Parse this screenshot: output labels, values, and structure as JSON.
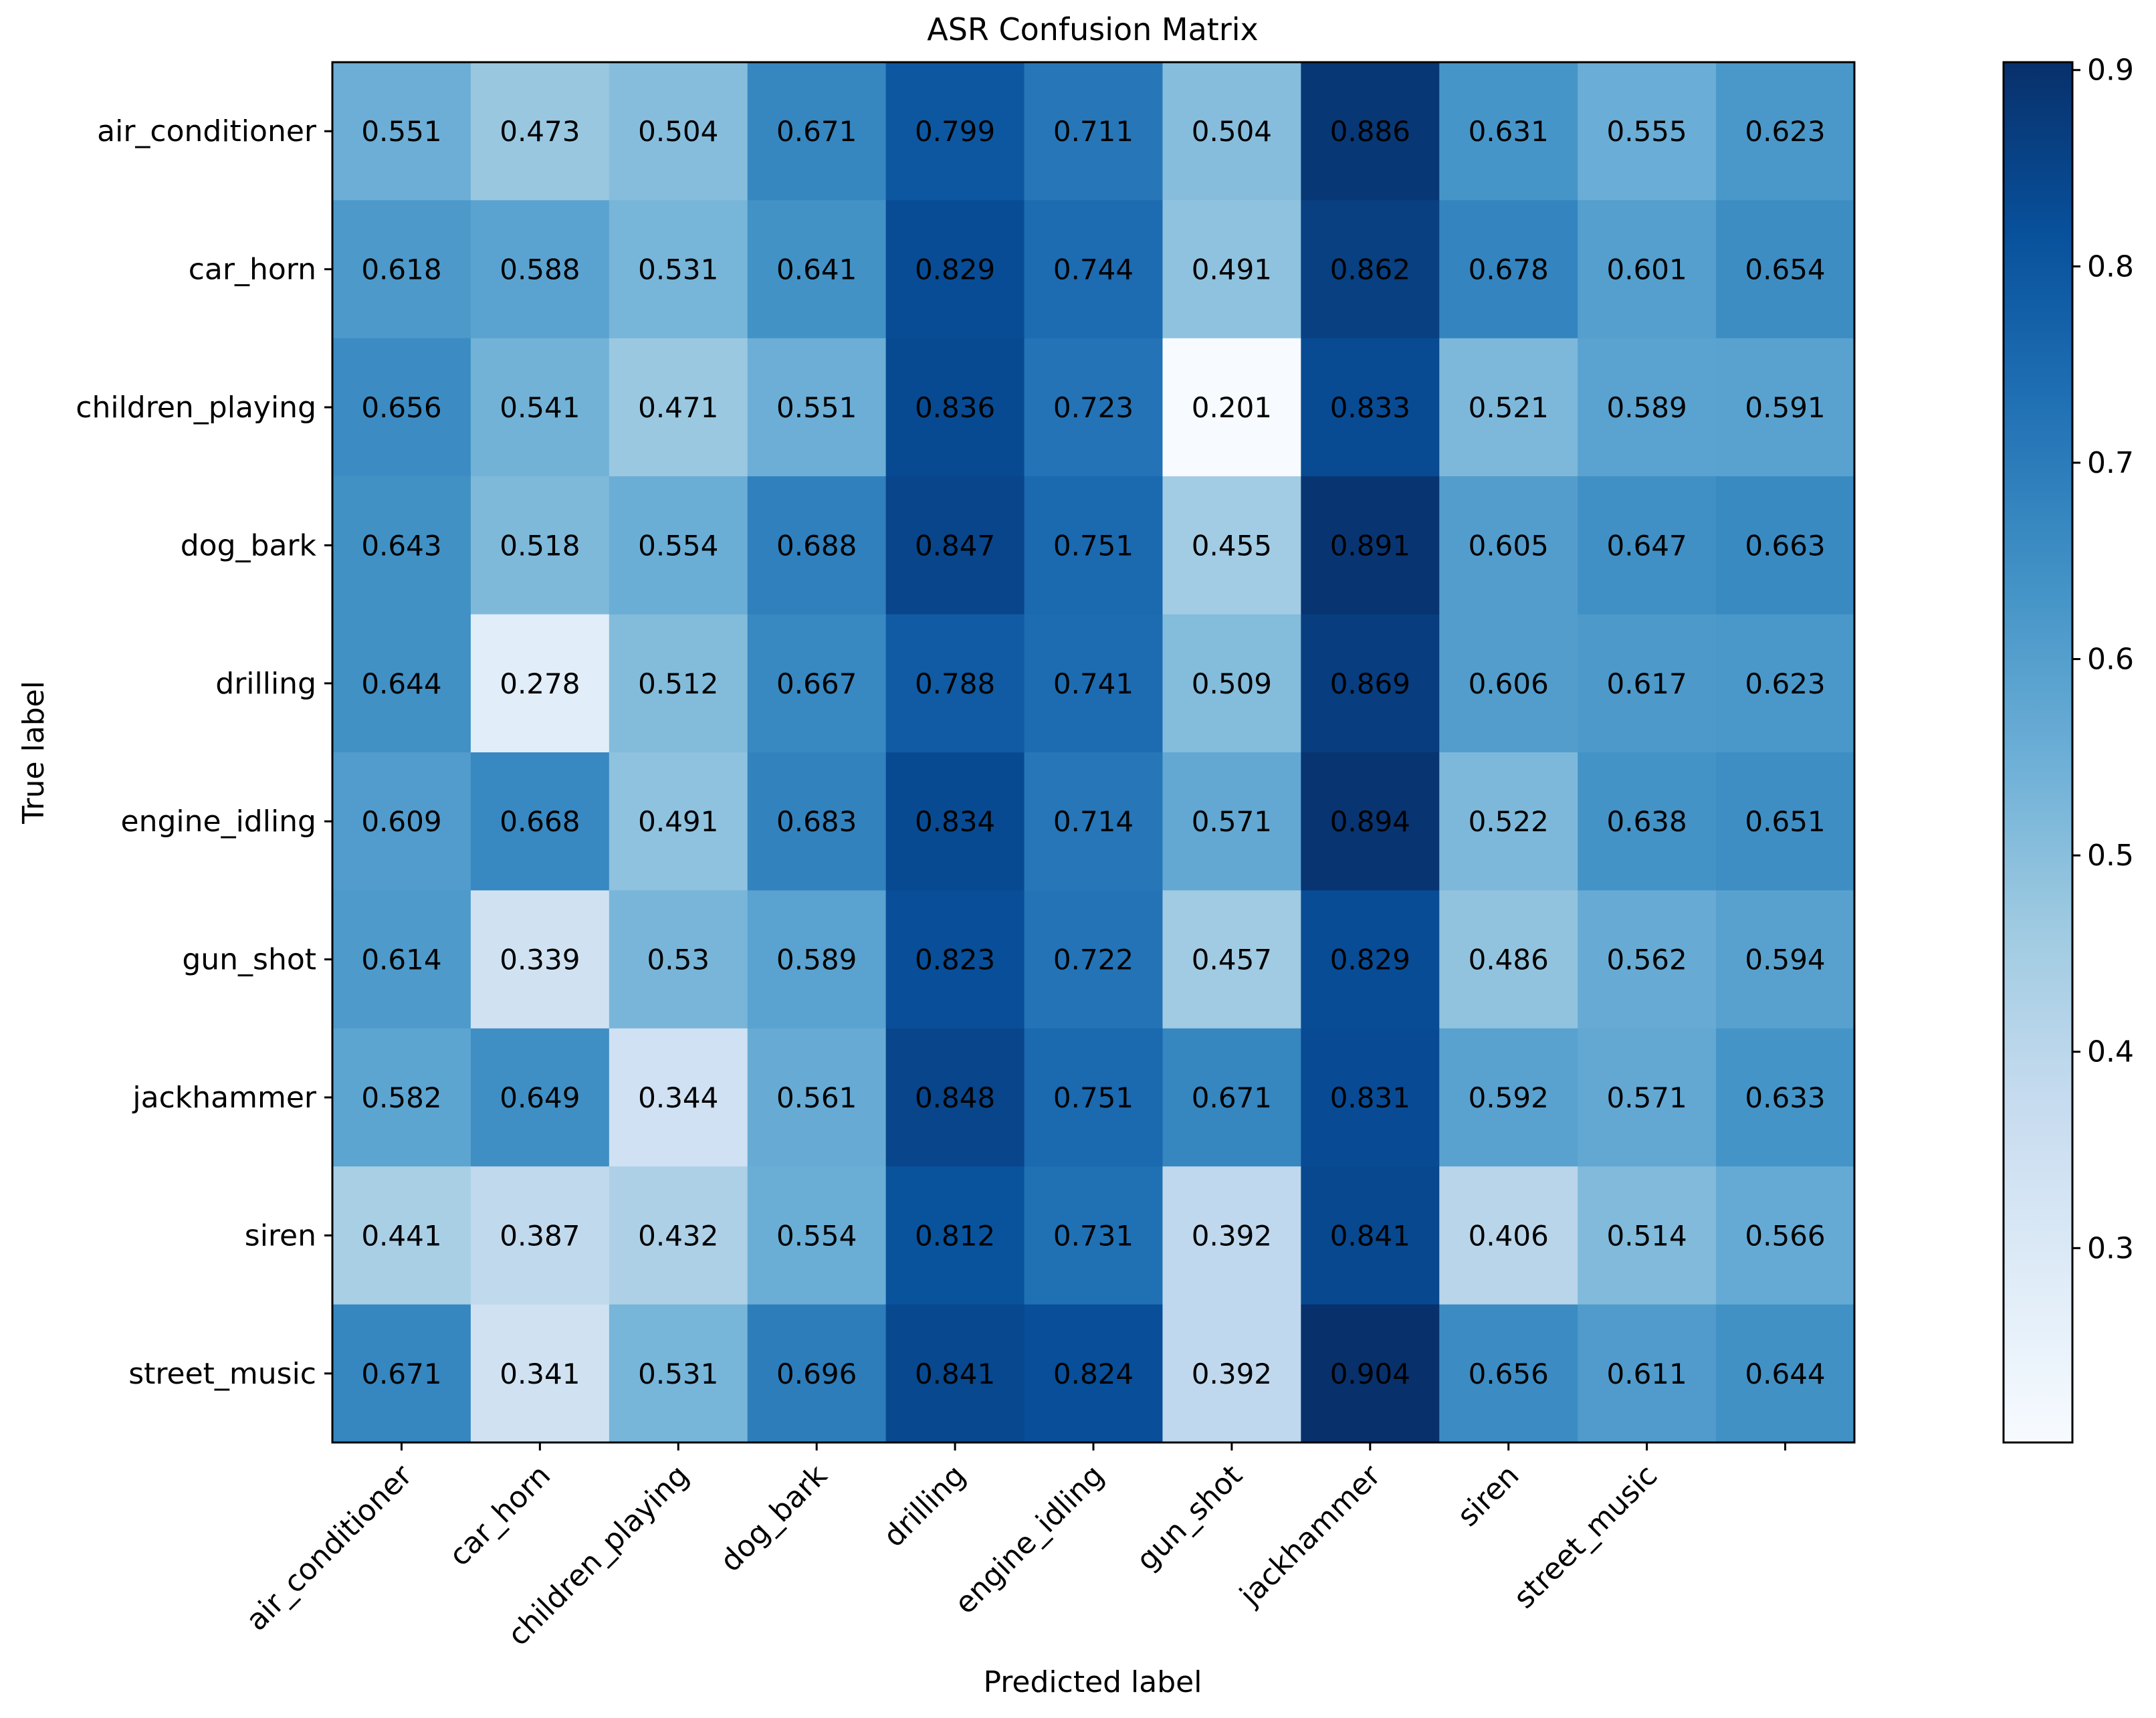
{
  "chart_data": {
    "type": "heatmap",
    "title": "ASR Confusion Matrix",
    "xlabel": "Predicted label",
    "ylabel": "True label",
    "row_labels": [
      "air_conditioner",
      "car_horn",
      "children_playing",
      "dog_bark",
      "drilling",
      "engine_idling",
      "gun_shot",
      "jackhammer",
      "siren",
      "street_music"
    ],
    "x_tick_labels": [
      "air_conditioner",
      "car_horn",
      "children_playing",
      "dog_bark",
      "drilling",
      "engine_idling",
      "gun_shot",
      "jackhammer",
      "siren",
      "street_music",
      ""
    ],
    "values": [
      [
        0.551,
        0.473,
        0.504,
        0.671,
        0.799,
        0.711,
        0.504,
        0.886,
        0.631,
        0.555,
        0.623
      ],
      [
        0.618,
        0.588,
        0.531,
        0.641,
        0.829,
        0.744,
        0.491,
        0.862,
        0.678,
        0.601,
        0.654
      ],
      [
        0.656,
        0.541,
        0.471,
        0.551,
        0.836,
        0.723,
        0.201,
        0.833,
        0.521,
        0.589,
        0.591
      ],
      [
        0.643,
        0.518,
        0.554,
        0.688,
        0.847,
        0.751,
        0.455,
        0.891,
        0.605,
        0.647,
        0.663
      ],
      [
        0.644,
        0.278,
        0.512,
        0.667,
        0.788,
        0.741,
        0.509,
        0.869,
        0.606,
        0.617,
        0.623
      ],
      [
        0.609,
        0.668,
        0.491,
        0.683,
        0.834,
        0.714,
        0.571,
        0.894,
        0.522,
        0.638,
        0.651
      ],
      [
        0.614,
        0.339,
        0.53,
        0.589,
        0.823,
        0.722,
        0.457,
        0.829,
        0.486,
        0.562,
        0.594
      ],
      [
        0.582,
        0.649,
        0.344,
        0.561,
        0.848,
        0.751,
        0.671,
        0.831,
        0.592,
        0.571,
        0.633
      ],
      [
        0.441,
        0.387,
        0.432,
        0.554,
        0.812,
        0.731,
        0.392,
        0.841,
        0.406,
        0.514,
        0.566
      ],
      [
        0.671,
        0.341,
        0.531,
        0.696,
        0.841,
        0.824,
        0.392,
        0.904,
        0.656,
        0.611,
        0.644
      ]
    ],
    "cell_text": [
      [
        "0.551",
        "0.473",
        "0.504",
        "0.671",
        "0.799",
        "0.711",
        "0.504",
        "0.886",
        "0.631",
        "0.555",
        "0.623"
      ],
      [
        "0.618",
        "0.588",
        "0.531",
        "0.641",
        "0.829",
        "0.744",
        "0.491",
        "0.862",
        "0.678",
        "0.601",
        "0.654"
      ],
      [
        "0.656",
        "0.541",
        "0.471",
        "0.551",
        "0.836",
        "0.723",
        "0.201",
        "0.833",
        "0.521",
        "0.589",
        "0.591"
      ],
      [
        "0.643",
        "0.518",
        "0.554",
        "0.688",
        "0.847",
        "0.751",
        "0.455",
        "0.891",
        "0.605",
        "0.647",
        "0.663"
      ],
      [
        "0.644",
        "0.278",
        "0.512",
        "0.667",
        "0.788",
        "0.741",
        "0.509",
        "0.869",
        "0.606",
        "0.617",
        "0.623"
      ],
      [
        "0.609",
        "0.668",
        "0.491",
        "0.683",
        "0.834",
        "0.714",
        "0.571",
        "0.894",
        "0.522",
        "0.638",
        "0.651"
      ],
      [
        "0.614",
        "0.339",
        "0.53",
        "0.589",
        "0.823",
        "0.722",
        "0.457",
        "0.829",
        "0.486",
        "0.562",
        "0.594"
      ],
      [
        "0.582",
        "0.649",
        "0.344",
        "0.561",
        "0.848",
        "0.751",
        "0.671",
        "0.831",
        "0.592",
        "0.571",
        "0.633"
      ],
      [
        "0.441",
        "0.387",
        "0.432",
        "0.554",
        "0.812",
        "0.731",
        "0.392",
        "0.841",
        "0.406",
        "0.514",
        "0.566"
      ],
      [
        "0.671",
        "0.341",
        "0.531",
        "0.696",
        "0.841",
        "0.824",
        "0.392",
        "0.904",
        "0.656",
        "0.611",
        "0.644"
      ]
    ],
    "color_range": [
      0.201,
      0.904
    ],
    "colormap": "Blues",
    "colorbar": {
      "ticks": [
        0.3,
        0.4,
        0.5,
        0.6,
        0.7,
        0.8,
        0.9
      ],
      "tick_labels": [
        "0.3",
        "0.4",
        "0.5",
        "0.6",
        "0.7",
        "0.8",
        "0.9"
      ]
    },
    "grid": false,
    "legend": "none"
  },
  "colors": {
    "text": "#000000",
    "axis": "#000000",
    "background": "#ffffff"
  }
}
